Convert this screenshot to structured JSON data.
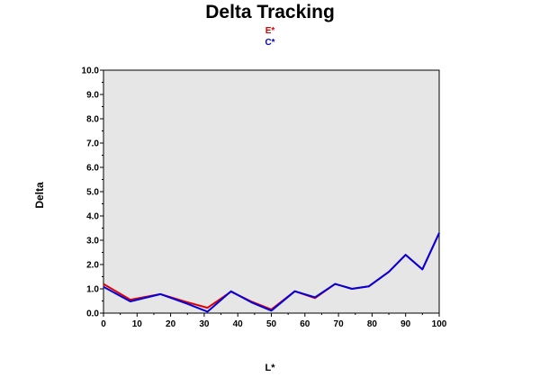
{
  "chart_data": {
    "type": "line",
    "title": "Delta Tracking",
    "xlabel": "L*",
    "ylabel": "Delta",
    "xlim": [
      0,
      100
    ],
    "ylim": [
      0,
      10
    ],
    "x_ticks": [
      "0",
      "10",
      "20",
      "30",
      "40",
      "50",
      "60",
      "70",
      "80",
      "90",
      "100"
    ],
    "y_ticks": [
      "0.0",
      "1.0",
      "2.0",
      "3.0",
      "4.0",
      "5.0",
      "6.0",
      "7.0",
      "8.0",
      "9.0",
      "10.0"
    ],
    "grid": false,
    "plot_background": "#e6e6e6",
    "legend_position": "top-center",
    "series": [
      {
        "name": "E*",
        "color": "#e00000",
        "x": [
          0,
          8,
          17,
          25,
          31,
          38,
          44,
          50,
          57,
          63,
          69,
          74,
          79,
          85,
          90,
          95,
          100
        ],
        "y": [
          1.2,
          0.55,
          0.78,
          0.45,
          0.22,
          0.88,
          0.48,
          0.15,
          0.9,
          0.62,
          1.2,
          1.0,
          1.1,
          1.7,
          2.4,
          1.8,
          3.3
        ]
      },
      {
        "name": "C*",
        "color": "#0000e0",
        "x": [
          0,
          8,
          17,
          25,
          31,
          38,
          44,
          50,
          57,
          63,
          69,
          74,
          79,
          85,
          90,
          95,
          100
        ],
        "y": [
          1.08,
          0.48,
          0.78,
          0.38,
          0.06,
          0.9,
          0.45,
          0.1,
          0.9,
          0.65,
          1.2,
          1.0,
          1.1,
          1.7,
          2.4,
          1.8,
          3.3
        ]
      }
    ]
  }
}
